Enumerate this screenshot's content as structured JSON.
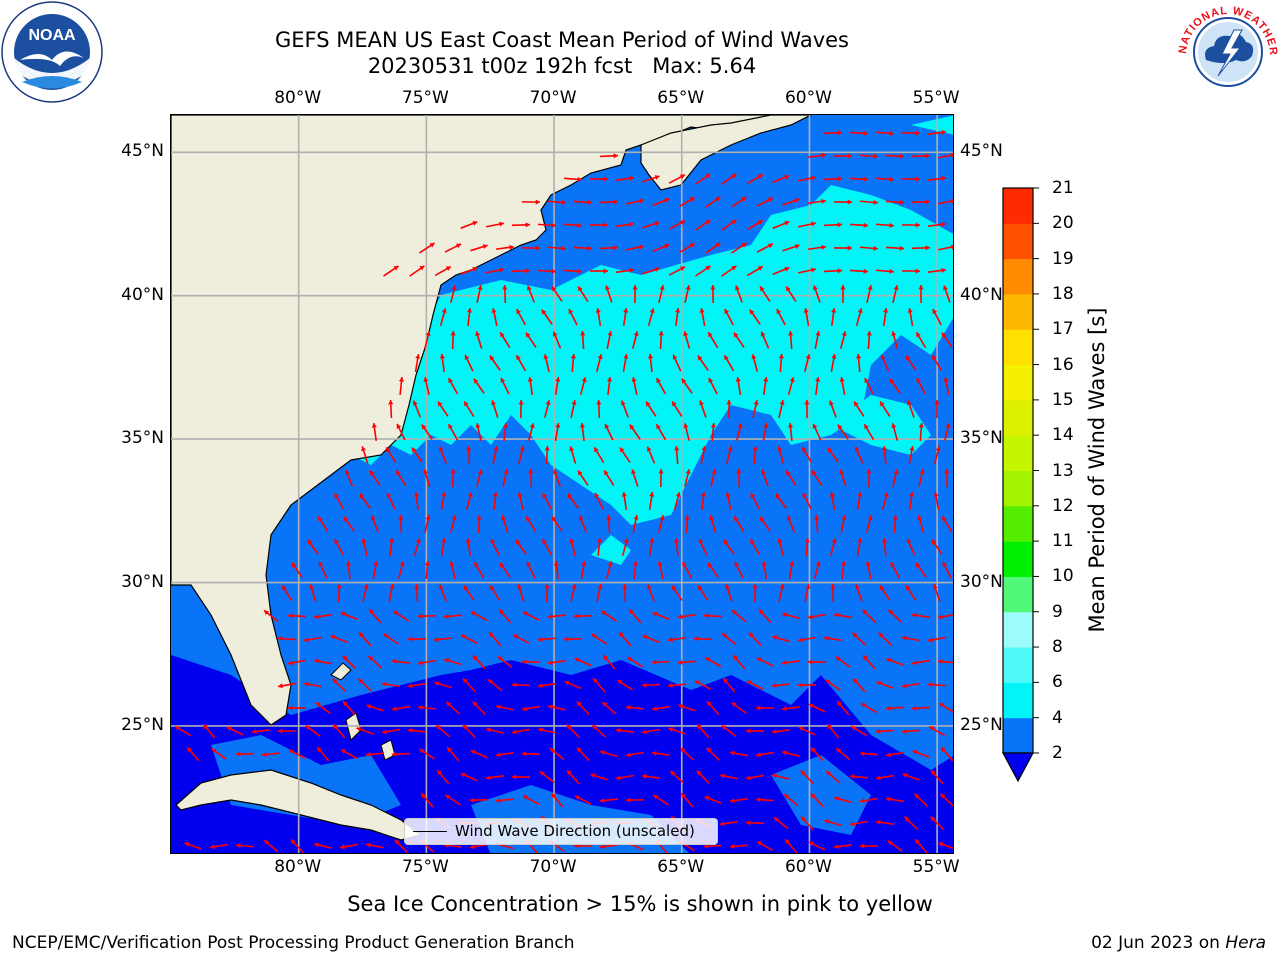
{
  "title": {
    "line1": "GEFS MEAN US East Coast Mean Period of Wind Waves",
    "line2_date": "20230531 t00z 192h fcst",
    "line2_max": "Max: 5.64"
  },
  "logos": {
    "left": {
      "icon": "noaa-logo-icon",
      "text": "NOAA"
    },
    "right": {
      "icon": "nws-logo-icon",
      "text": "NATIONAL WEATHER SERVICE"
    }
  },
  "map": {
    "lon_labels": [
      "80°W",
      "75°W",
      "70°W",
      "65°W",
      "60°W",
      "55°W"
    ],
    "lat_labels": [
      "45°N",
      "40°N",
      "35°N",
      "30°N",
      "25°N"
    ],
    "lon_range": [
      -85,
      -54.3
    ],
    "lat_range": [
      20.5,
      46.3
    ],
    "gridlines": true,
    "colors": {
      "land": "#efeedc",
      "water_2_4": "#0a74f8",
      "water_4_6": "#01f5f6",
      "water_below_2": "#0000ee",
      "arrow": "#ff0000",
      "grid": "#b0b0b0"
    }
  },
  "colorbar": {
    "title": "Mean Period of Wind Waves [s]",
    "tick_labels": [
      "2",
      "4",
      "6",
      "8",
      "9",
      "10",
      "11",
      "12",
      "13",
      "14",
      "15",
      "16",
      "17",
      "18",
      "19",
      "20",
      "21"
    ],
    "colors": [
      "#0a74f8",
      "#01f5f6",
      "#4ff9fa",
      "#9cfbfb",
      "#52f879",
      "#00ee00",
      "#55ee00",
      "#a3f200",
      "#c6f500",
      "#ddf000",
      "#f5f000",
      "#ffe000",
      "#ffb800",
      "#ff8c00",
      "#ff5000",
      "#ff2a00",
      "#ff0000"
    ],
    "extend_below_color": "#0000ee"
  },
  "legend": {
    "label": "Wind Wave Direction (unscaled)"
  },
  "caption": "Sea Ice Concentration > 15% is shown in pink to yellow",
  "footer": {
    "left": "NCEP/EMC/Verification Post Processing Product Generation Branch",
    "right_date": "02 Jun 2023 on",
    "right_host": "Hera"
  }
}
